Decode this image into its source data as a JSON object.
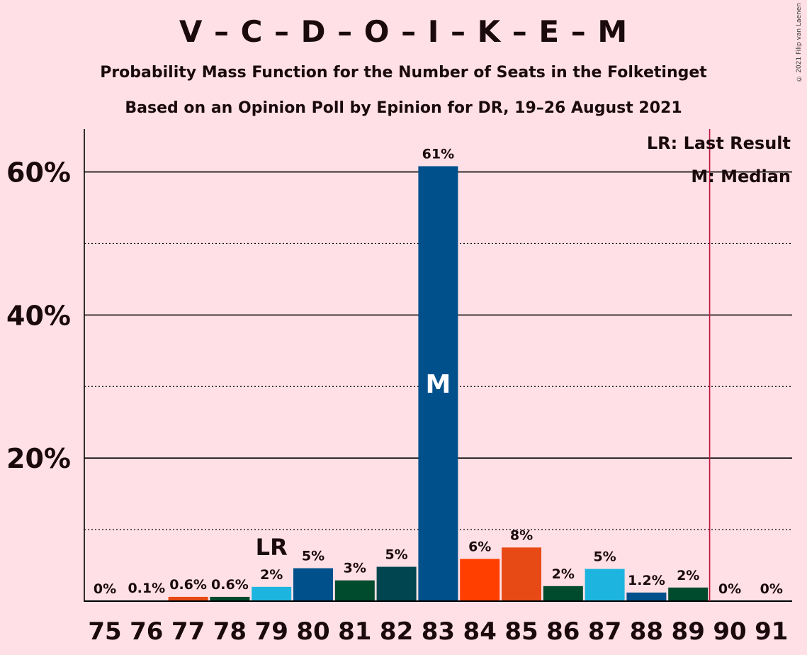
{
  "title": "V – C – D – O – I – K – E – M",
  "subtitle1": "Probability Mass Function for the Number of Seats in the Folketinget",
  "subtitle2": "Based on an Opinion Poll by Epinion for DR, 19–26 August 2021",
  "copyright": "© 2021 Filip van Laenen",
  "legend": {
    "lr": "LR: Last Result",
    "m": "M: Median"
  },
  "chart_data": {
    "type": "bar",
    "categories": [
      "75",
      "76",
      "77",
      "78",
      "79",
      "80",
      "81",
      "82",
      "83",
      "84",
      "85",
      "86",
      "87",
      "88",
      "89",
      "90",
      "91"
    ],
    "values": [
      0,
      0.1,
      0.6,
      0.6,
      2.0,
      4.6,
      2.9,
      4.8,
      60.8,
      5.9,
      7.5,
      2.1,
      4.5,
      1.2,
      1.9,
      0,
      0
    ],
    "data_labels": [
      "0%",
      "0.1%",
      "0.6%",
      "0.6%",
      "2%",
      "5%",
      "3%",
      "5%",
      "61%",
      "6%",
      "8%",
      "2%",
      "5%",
      "1.2%",
      "2%",
      "0%",
      "0%"
    ],
    "colors": [
      "#00508C",
      "#00508C",
      "#E84A16",
      "#004A2E",
      "#1DB5DF",
      "#00508C",
      "#004A2E",
      "#00454F",
      "#00508C",
      "#FF3F00",
      "#E84A16",
      "#004A2E",
      "#1DB5DF",
      "#00508C",
      "#004A2E",
      "#00508C",
      "#00508C"
    ],
    "ylim": [
      0,
      66
    ],
    "yticks": [
      20,
      40,
      60
    ],
    "ytick_labels": [
      "20%",
      "40%",
      "60%"
    ],
    "minor_gridlines": [
      10,
      30,
      50
    ],
    "last_result_seat": "79",
    "last_result_label": "LR",
    "median_seat": "83",
    "median_label": "M",
    "majority_line_after_seat": "89",
    "majority_line_color": "#C0143C"
  }
}
